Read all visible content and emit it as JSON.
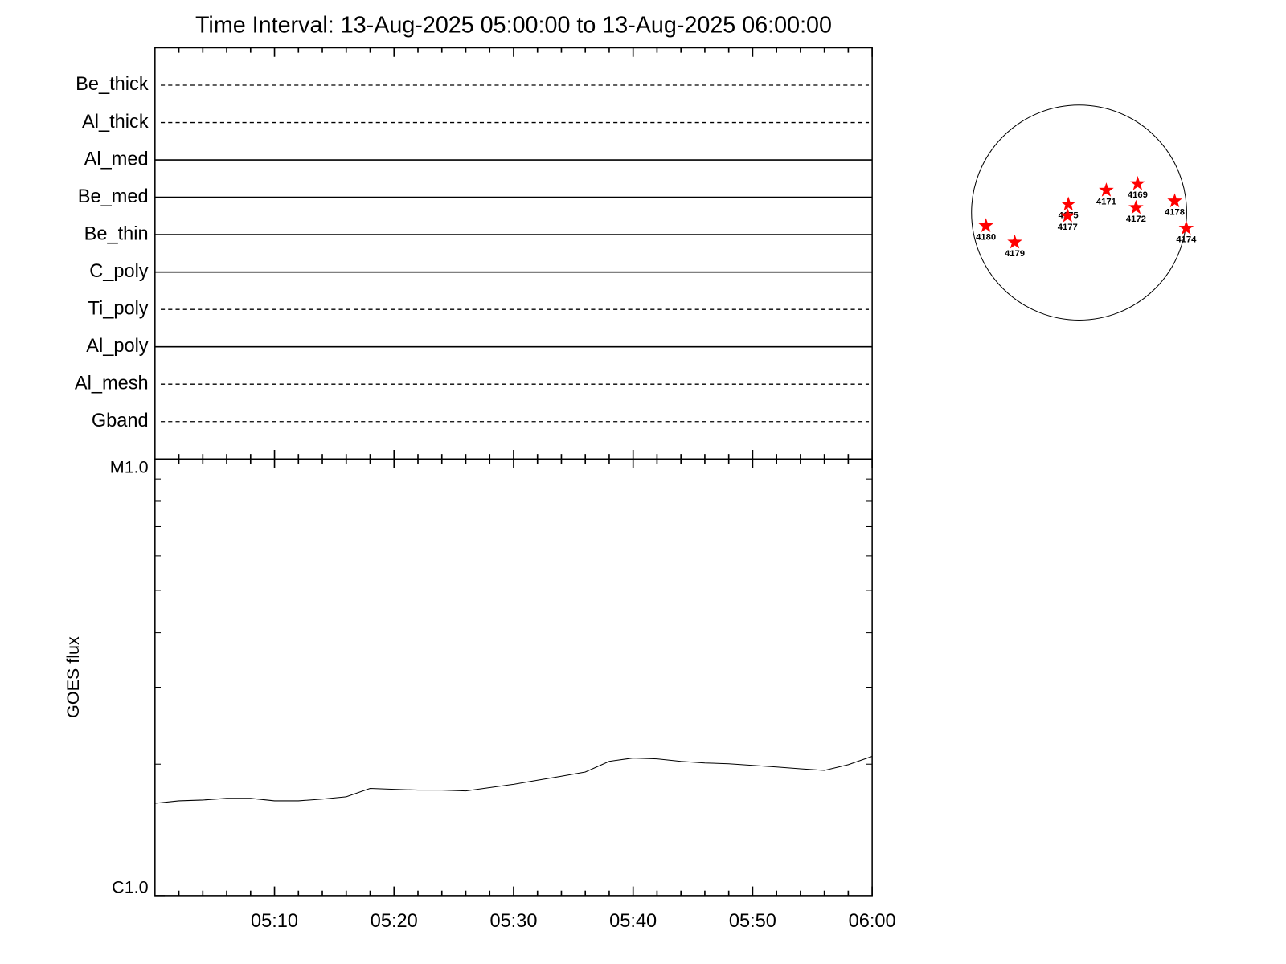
{
  "title": "Time Interval: 13-Aug-2025 05:00:00 to 13-Aug-2025 06:00:00",
  "chart_data": [
    {
      "type": "filter-panel",
      "rows": [
        {
          "label": "Be_thick",
          "style": "dashed"
        },
        {
          "label": "Al_thick",
          "style": "dashed"
        },
        {
          "label": "Al_med",
          "style": "solid"
        },
        {
          "label": "Be_med",
          "style": "solid"
        },
        {
          "label": "Be_thin",
          "style": "solid"
        },
        {
          "label": "C_poly",
          "style": "solid"
        },
        {
          "label": "Ti_poly",
          "style": "dashed"
        },
        {
          "label": "Al_poly",
          "style": "solid"
        },
        {
          "label": "Al_mesh",
          "style": "dashed"
        },
        {
          "label": "Gband",
          "style": "dashed"
        }
      ]
    },
    {
      "type": "line",
      "ylabel": "GOES flux",
      "color": "#000000",
      "log_y": true,
      "x": [
        "05:00",
        "05:02",
        "05:04",
        "05:06",
        "05:08",
        "05:10",
        "05:12",
        "05:14",
        "05:16",
        "05:18",
        "05:20",
        "05:22",
        "05:24",
        "05:26",
        "05:28",
        "05:30",
        "05:32",
        "05:34",
        "05:36",
        "05:38",
        "05:40",
        "05:42",
        "05:44",
        "05:46",
        "05:48",
        "05:50",
        "05:52",
        "05:54",
        "05:56",
        "05:58",
        "06:00"
      ],
      "values": [
        1.627e-06,
        1.648e-06,
        1.655e-06,
        1.67e-06,
        1.67e-06,
        1.648e-06,
        1.648e-06,
        1.663e-06,
        1.684e-06,
        1.759e-06,
        1.751e-06,
        1.744e-06,
        1.744e-06,
        1.736e-06,
        1.767e-06,
        1.798e-06,
        1.837e-06,
        1.877e-06,
        1.919e-06,
        2.03e-06,
        2.066e-06,
        2.057e-06,
        2.03e-06,
        2.013e-06,
        2.004e-06,
        1.987e-06,
        1.97e-06,
        1.952e-06,
        1.935e-06,
        1.995e-06,
        2.084e-06
      ],
      "xlim": [
        "05:00",
        "06:00"
      ],
      "xticks": [
        "05:10",
        "05:20",
        "05:30",
        "05:40",
        "05:50",
        "06:00"
      ],
      "xminor_ticks": [
        "05:02",
        "05:04",
        "05:06",
        "05:08",
        "05:12",
        "05:14",
        "05:16",
        "05:18",
        "05:22",
        "05:24",
        "05:26",
        "05:28",
        "05:32",
        "05:34",
        "05:36",
        "05:38",
        "05:42",
        "05:44",
        "05:46",
        "05:48",
        "05:52",
        "05:54",
        "05:56",
        "05:58"
      ],
      "ylim": [
        1e-06,
        1e-05
      ],
      "yticks": [
        {
          "value": 1e-06,
          "label": "C1.0"
        },
        {
          "value": 1e-05,
          "label": "M1.0"
        }
      ],
      "yminor_ticks": [
        2e-06,
        3e-06,
        4e-06,
        5e-06,
        6e-06,
        7e-06,
        8e-06,
        9e-06
      ]
    },
    {
      "type": "disk",
      "color": "#ff0000",
      "regions": [
        {
          "label": "4180",
          "x": -0.866,
          "y": -0.123
        },
        {
          "label": "4179",
          "x": -0.598,
          "y": -0.276
        },
        {
          "label": "4175",
          "x": -0.1,
          "y": 0.077
        },
        {
          "label": "4177",
          "x": -0.107,
          "y": -0.031
        },
        {
          "label": "4171",
          "x": 0.253,
          "y": 0.207
        },
        {
          "label": "4169",
          "x": 0.544,
          "y": 0.268
        },
        {
          "label": "4172",
          "x": 0.529,
          "y": 0.046
        },
        {
          "label": "4178",
          "x": 0.889,
          "y": 0.107
        },
        {
          "label": "4174",
          "x": 0.996,
          "y": -0.146
        }
      ]
    }
  ]
}
